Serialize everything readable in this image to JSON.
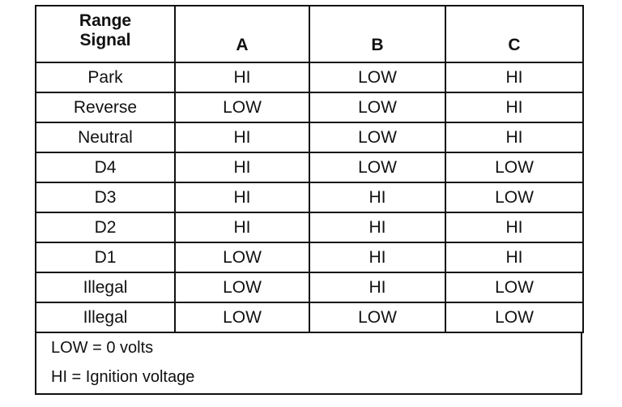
{
  "table": {
    "header": {
      "range_signal": "Range\nSignal",
      "range_line1": "Range",
      "range_line2": "Signal",
      "a": "A",
      "b": "B",
      "c": "C"
    },
    "rows": [
      {
        "range": "Park",
        "a": "HI",
        "b": "LOW",
        "c": "HI"
      },
      {
        "range": "Reverse",
        "a": "LOW",
        "b": "LOW",
        "c": "HI"
      },
      {
        "range": "Neutral",
        "a": "HI",
        "b": "LOW",
        "c": "HI"
      },
      {
        "range": "D4",
        "a": "HI",
        "b": "LOW",
        "c": "LOW"
      },
      {
        "range": "D3",
        "a": "HI",
        "b": "HI",
        "c": "LOW"
      },
      {
        "range": "D2",
        "a": "HI",
        "b": "HI",
        "c": "HI"
      },
      {
        "range": "D1",
        "a": "LOW",
        "b": "HI",
        "c": "HI"
      },
      {
        "range": "Illegal",
        "a": "LOW",
        "b": "HI",
        "c": "LOW"
      },
      {
        "range": "Illegal",
        "a": "LOW",
        "b": "LOW",
        "c": "LOW"
      }
    ]
  },
  "legend": {
    "low": "LOW = 0 volts",
    "hi": "HI = Ignition voltage"
  }
}
